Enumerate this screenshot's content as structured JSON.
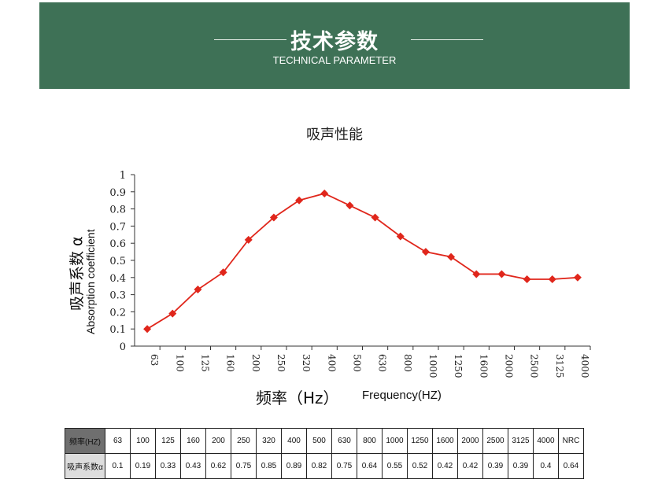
{
  "header": {
    "title": "技术参数",
    "subtitle": "TECHNICAL PARAMETER",
    "color": "#3e7156"
  },
  "chart_data": {
    "type": "line",
    "title": "吸声性能",
    "xlabel": "频率（Hz）",
    "xlabel_en": "Frequency(HZ)",
    "ylabel": "吸声系数 α",
    "ylabel_en": "Absorption coefficient",
    "categories": [
      "63",
      "100",
      "125",
      "160",
      "200",
      "250",
      "320",
      "400",
      "500",
      "630",
      "800",
      "1000",
      "1250",
      "1600",
      "2000",
      "2500",
      "3125",
      "4000"
    ],
    "values": [
      0.1,
      0.19,
      0.33,
      0.43,
      0.62,
      0.75,
      0.85,
      0.89,
      0.82,
      0.75,
      0.64,
      0.55,
      0.52,
      0.42,
      0.42,
      0.39,
      0.39,
      0.4
    ],
    "ylim": [
      0,
      1
    ],
    "yticks": [
      "0",
      "0.1",
      "0.2",
      "0.3",
      "0.4",
      "0.5",
      "0.6",
      "0.7",
      "0.8",
      "0.9",
      "1"
    ],
    "grid": false,
    "color": "#e0261b"
  },
  "table": {
    "row1_header": "频率(HZ)",
    "row2_header": "吸声系数α",
    "freqs": [
      "63",
      "100",
      "125",
      "160",
      "200",
      "250",
      "320",
      "400",
      "500",
      "630",
      "800",
      "1000",
      "1250",
      "1600",
      "2000",
      "2500",
      "3125",
      "4000",
      "NRC"
    ],
    "values": [
      "0.1",
      "0.19",
      "0.33",
      "0.43",
      "0.62",
      "0.75",
      "0.85",
      "0.89",
      "0.82",
      "0.75",
      "0.64",
      "0.55",
      "0.52",
      "0.42",
      "0.42",
      "0.39",
      "0.39",
      "0.4",
      "0.64"
    ]
  }
}
